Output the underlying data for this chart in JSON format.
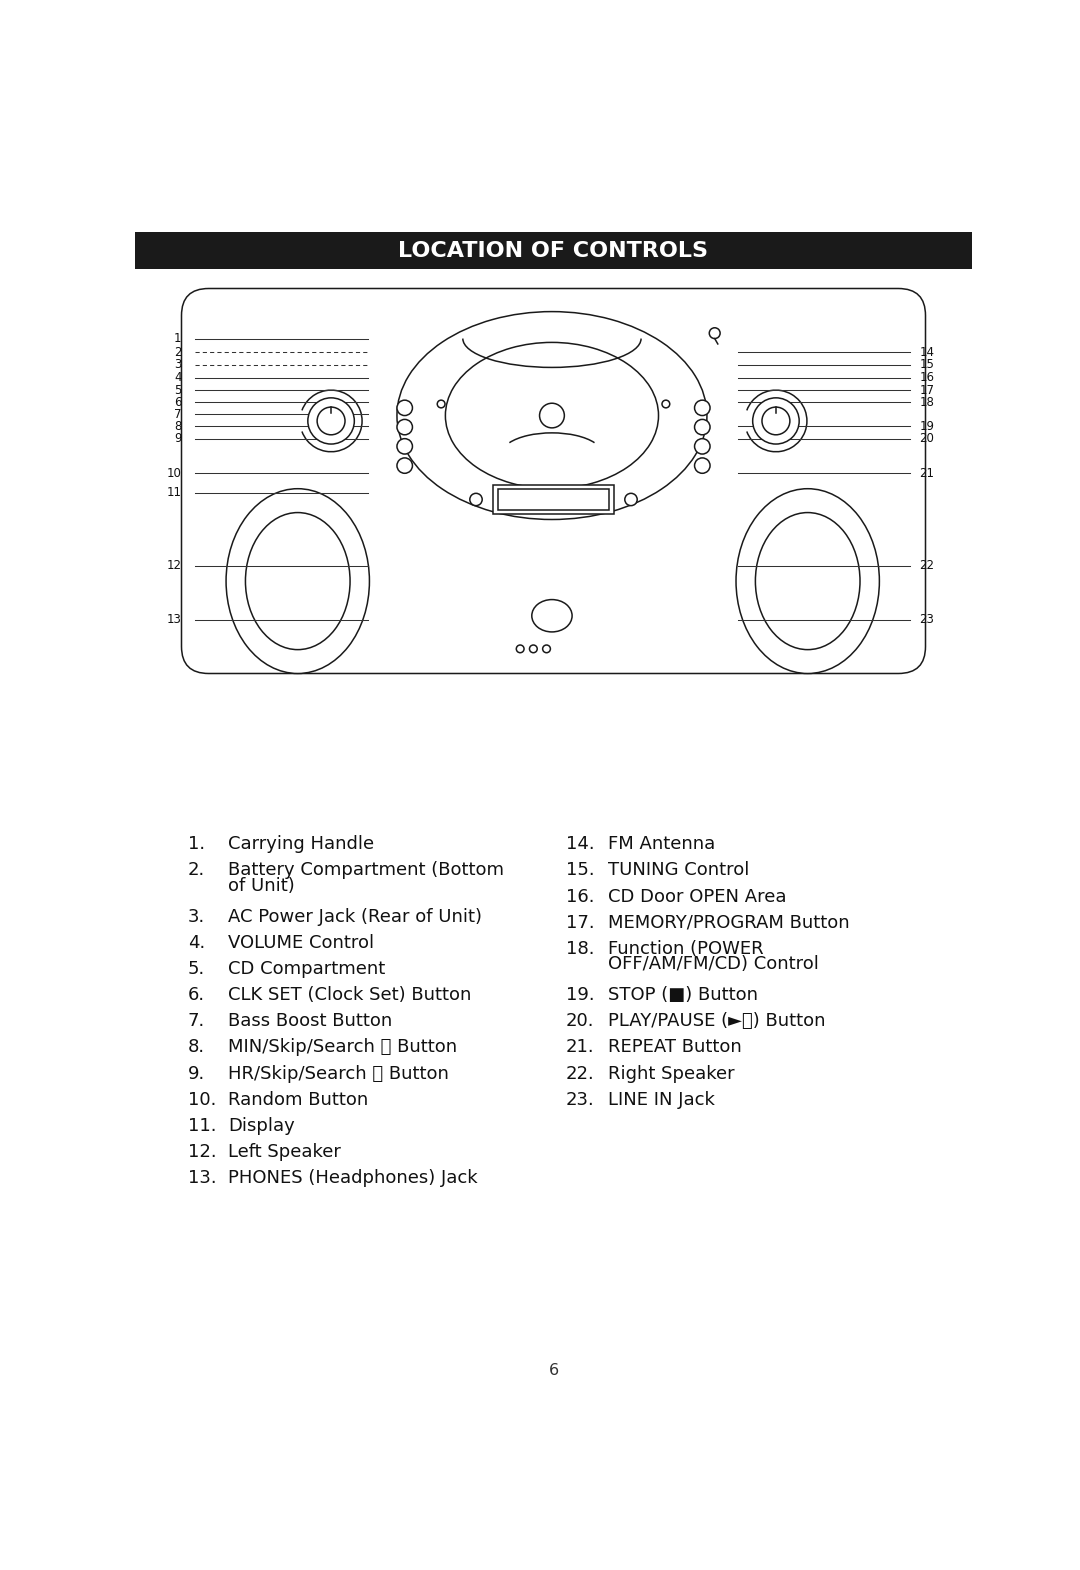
{
  "title": "LOCATION OF CONTROLS",
  "title_bg": "#1a1a1a",
  "title_color": "#ffffff",
  "page_number": "6",
  "bg_color": "#ffffff",
  "left_labels": [
    [
      1,
      "Carrying Handle"
    ],
    [
      2,
      "Battery Compartment (Bottom\nof Unit)"
    ],
    [
      3,
      "AC Power Jack (Rear of Unit)"
    ],
    [
      4,
      "VOLUME Control"
    ],
    [
      5,
      "CD Compartment"
    ],
    [
      6,
      "CLK SET (Clock Set) Button"
    ],
    [
      7,
      "Bass Boost Button"
    ],
    [
      8,
      "MIN/Skip/Search ⏮ Button"
    ],
    [
      9,
      "HR/Skip/Search ⏭ Button"
    ],
    [
      10,
      "Random Button"
    ],
    [
      11,
      "Display"
    ],
    [
      12,
      "Left Speaker"
    ],
    [
      13,
      "PHONES (Headphones) Jack"
    ]
  ],
  "right_labels": [
    [
      14,
      "FM Antenna"
    ],
    [
      15,
      "TUNING Control"
    ],
    [
      16,
      "CD Door OPEN Area"
    ],
    [
      17,
      "MEMORY/PROGRAM Button"
    ],
    [
      18,
      "Function (POWER\nOFF/AM/FM/CD) Control"
    ],
    [
      19,
      "STOP (■) Button"
    ],
    [
      20,
      "PLAY/PAUSE (►⏸) Button"
    ],
    [
      21,
      "REPEAT Button"
    ],
    [
      22,
      "Right Speaker"
    ],
    [
      23,
      "LINE IN Jack"
    ]
  ],
  "left_line_y": [
    195,
    213,
    229,
    246,
    262,
    278,
    293,
    309,
    325,
    370,
    395,
    490,
    560
  ],
  "right_line_y": [
    213,
    229,
    246,
    262,
    278,
    309,
    325,
    370,
    490,
    560
  ],
  "left_nums": [
    1,
    2,
    3,
    4,
    5,
    6,
    7,
    8,
    9,
    10,
    11,
    12,
    13
  ],
  "right_nums": [
    14,
    15,
    16,
    17,
    18,
    19,
    20,
    21,
    22,
    23
  ],
  "dashed_nums": [
    2,
    3
  ]
}
